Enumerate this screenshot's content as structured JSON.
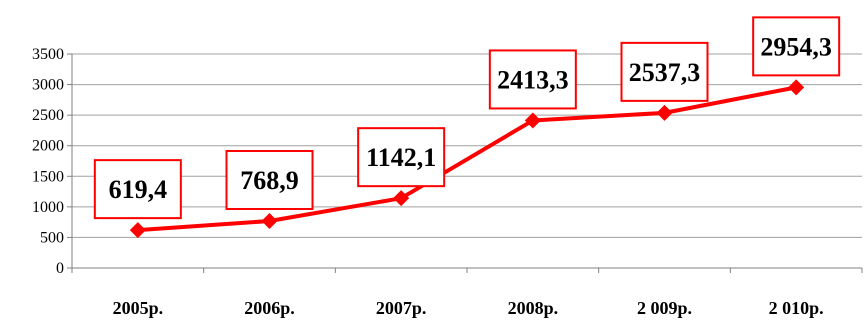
{
  "chart_data": {
    "type": "line",
    "title": "",
    "xlabel": "",
    "ylabel": "",
    "categories": [
      "2005р.",
      "2006р.",
      "2007р.",
      "2008р.",
      "2 009р.",
      "2 010р."
    ],
    "series": [
      {
        "values": [
          619.4,
          768.9,
          1142.1,
          2413.3,
          2537.3,
          2954.3
        ]
      }
    ],
    "data_labels": [
      "619,4",
      "768,9",
      "1142,1",
      "2413,3",
      "2537,3",
      "2954,3"
    ],
    "y_ticks": [
      "0",
      "500",
      "1000",
      "1500",
      "2000",
      "2500",
      "3000",
      "3500"
    ],
    "ylim": [
      0,
      3500
    ],
    "grid": true,
    "legend": "none",
    "colors": {
      "series": "#ff0000",
      "label_border": "#ff0000",
      "grid": "#a0a0a0",
      "axis": "#808080"
    }
  }
}
